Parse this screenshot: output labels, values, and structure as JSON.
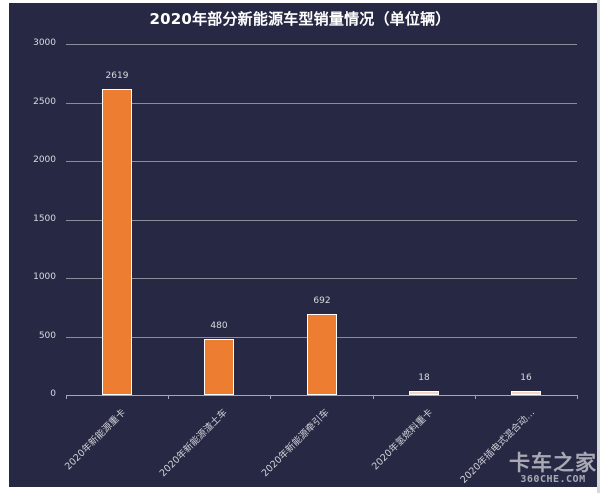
{
  "chart_data": {
    "type": "bar",
    "title": "2020年部分新能源车型销量情况（单位辆）",
    "xlabel": "",
    "ylabel": "",
    "ylim": [
      0,
      3000
    ],
    "yticks": [
      "0",
      "500",
      "1000",
      "1500",
      "2000",
      "2500",
      "3000"
    ],
    "grid": true,
    "legend": null,
    "categories": [
      "2020年新能源重卡",
      "2020年新能源渣土车",
      "2020年新能源牵引车",
      "2020年氢燃料重卡",
      "2020年插电式混合动…"
    ],
    "values": [
      2619,
      480,
      692,
      18,
      16
    ],
    "data_labels": [
      "2619",
      "480",
      "692",
      "18",
      "16"
    ],
    "bar_color": "#ED7D31",
    "background_color": "#272944"
  },
  "watermark": {
    "cn": "卡车之家",
    "en": "360CHE.COM"
  }
}
